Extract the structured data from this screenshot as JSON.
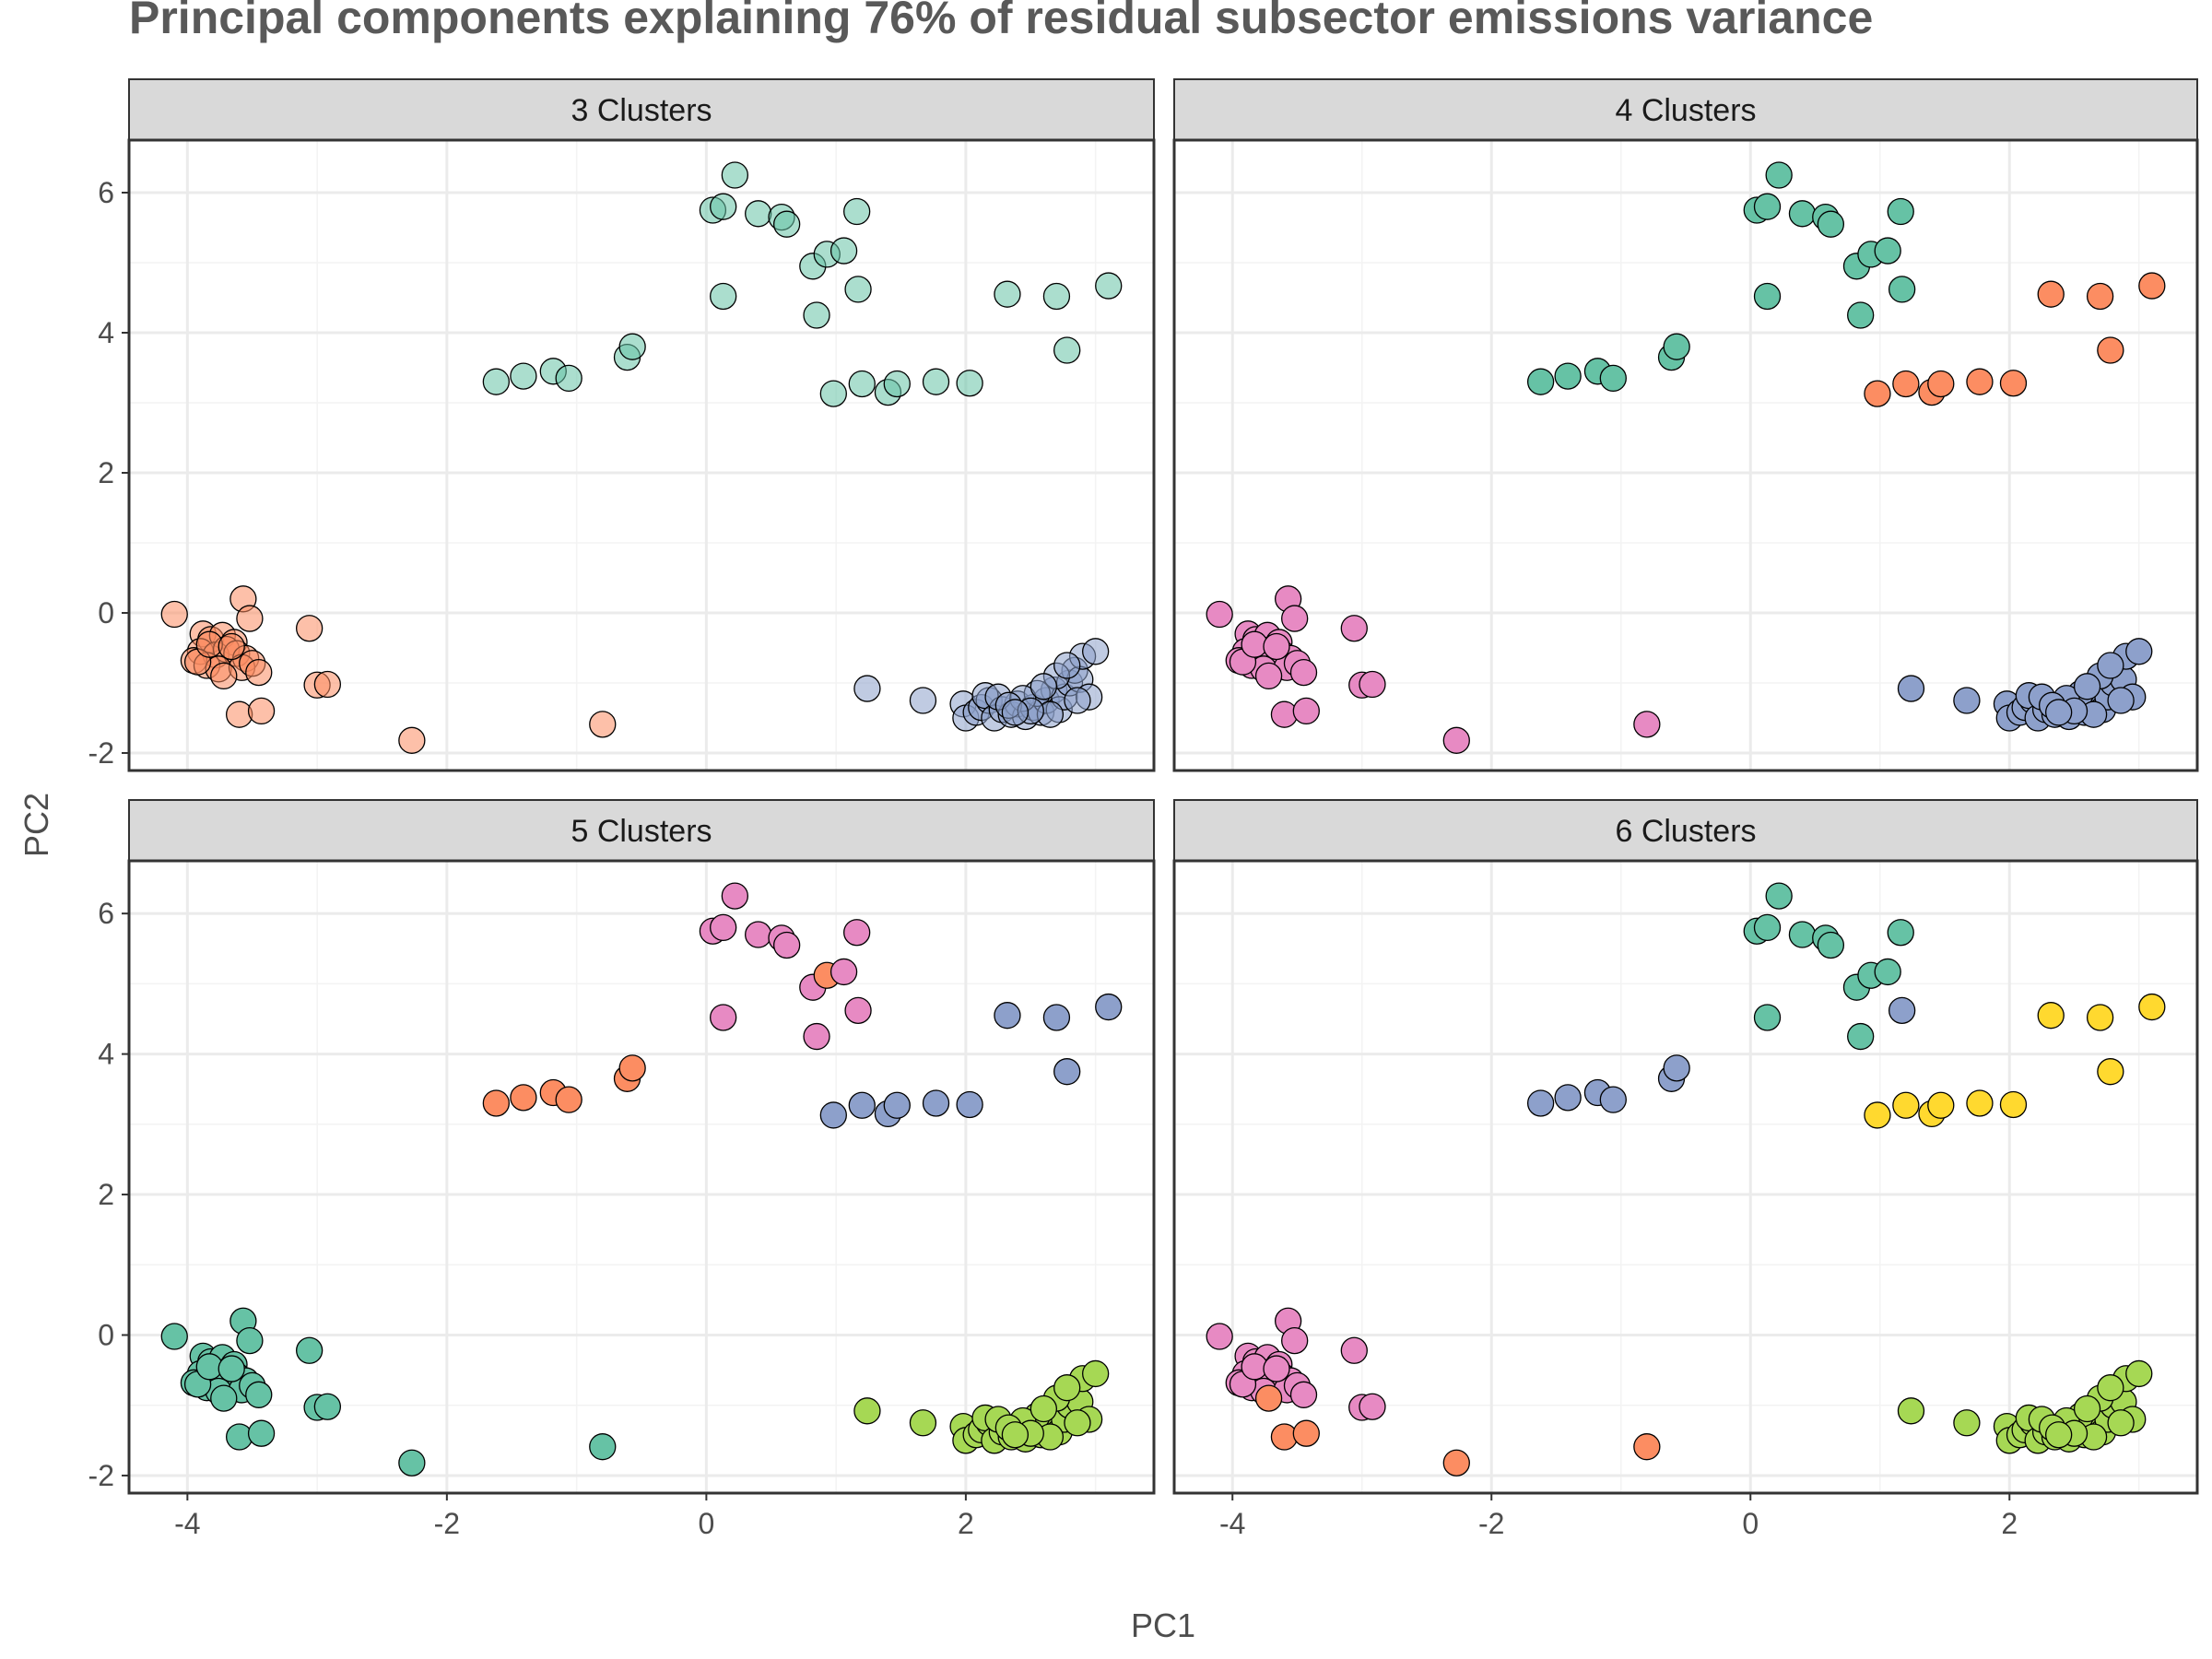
{
  "chart_data": {
    "type": "scatter",
    "title": "Principal components explaining 76% of residual subsector emissions variance",
    "xlabel": "PC1",
    "ylabel": "PC2",
    "xlim": [
      -4.45,
      3.45
    ],
    "ylim": [
      -2.25,
      6.75
    ],
    "xticks": [
      -4,
      -2,
      0,
      2
    ],
    "yticks": [
      -2,
      0,
      2,
      4,
      6
    ],
    "grid": true,
    "legend": "none",
    "point_groups": {
      "A": [
        [
          0.05,
          5.75
        ],
        [
          0.13,
          5.8
        ],
        [
          0.22,
          6.25
        ],
        [
          0.4,
          5.7
        ],
        [
          0.58,
          5.65
        ],
        [
          0.62,
          5.55
        ],
        [
          0.82,
          4.95
        ],
        [
          0.93,
          5.12
        ],
        [
          1.06,
          5.17
        ],
        [
          1.16,
          5.73
        ],
        [
          0.13,
          4.52
        ],
        [
          0.85,
          4.25
        ],
        [
          1.17,
          4.62
        ]
      ],
      "B": [
        [
          -1.62,
          3.3
        ],
        [
          -1.41,
          3.38
        ],
        [
          -1.18,
          3.45
        ],
        [
          -1.06,
          3.35
        ],
        [
          -0.61,
          3.65
        ],
        [
          -0.57,
          3.8
        ]
      ],
      "C": [
        [
          0.98,
          3.13
        ],
        [
          1.2,
          3.27
        ],
        [
          1.4,
          3.15
        ],
        [
          1.47,
          3.27
        ],
        [
          1.77,
          3.3
        ],
        [
          2.03,
          3.28
        ]
      ],
      "D": [
        [
          2.32,
          4.55
        ],
        [
          2.7,
          4.52
        ],
        [
          3.1,
          4.67
        ],
        [
          2.78,
          3.75
        ]
      ],
      "E": [
        [
          -3.88,
          -0.3
        ],
        [
          -3.82,
          -0.38
        ],
        [
          -3.73,
          -0.32
        ],
        [
          -3.64,
          -0.42
        ],
        [
          -3.9,
          -0.55
        ],
        [
          -3.78,
          -0.6
        ],
        [
          -3.7,
          -0.52
        ],
        [
          -3.62,
          -0.58
        ],
        [
          -3.55,
          -0.65
        ],
        [
          -3.95,
          -0.68
        ],
        [
          -3.85,
          -0.75
        ],
        [
          -3.76,
          -0.8
        ],
        [
          -3.58,
          -0.78
        ],
        [
          -3.5,
          -0.72
        ],
        [
          -3.45,
          -0.85
        ],
        [
          -3.72,
          -0.9
        ],
        [
          -3.92,
          -0.7
        ],
        [
          -3.83,
          -0.45
        ],
        [
          -3.66,
          -0.48
        ],
        [
          -4.1,
          -0.02
        ],
        [
          -3.57,
          0.2
        ],
        [
          -3.52,
          -0.08
        ],
        [
          -3.06,
          -0.22
        ],
        [
          -3.0,
          -1.03
        ],
        [
          -2.92,
          -1.02
        ],
        [
          -3.6,
          -1.45
        ],
        [
          -3.43,
          -1.4
        ]
      ],
      "F": [
        [
          -2.27,
          -1.82
        ],
        [
          -0.8,
          -1.59
        ]
      ],
      "G": [
        [
          1.24,
          -1.08
        ],
        [
          1.67,
          -1.25
        ],
        [
          1.98,
          -1.3
        ],
        [
          2.0,
          -1.5
        ],
        [
          2.08,
          -1.42
        ],
        [
          2.12,
          -1.35
        ],
        [
          2.18,
          -1.25
        ],
        [
          2.15,
          -1.18
        ],
        [
          2.22,
          -1.5
        ],
        [
          2.28,
          -1.38
        ],
        [
          2.35,
          -1.45
        ],
        [
          2.4,
          -1.3
        ],
        [
          2.46,
          -1.48
        ],
        [
          2.52,
          -1.35
        ],
        [
          2.58,
          -1.42
        ],
        [
          2.62,
          -1.25
        ],
        [
          2.68,
          -1.1
        ],
        [
          2.72,
          -1.38
        ],
        [
          2.76,
          -1.2
        ],
        [
          2.8,
          -1.0
        ],
        [
          2.84,
          -0.82
        ],
        [
          2.88,
          -0.95
        ],
        [
          2.9,
          -0.62
        ],
        [
          2.95,
          -1.2
        ],
        [
          3.0,
          -0.55
        ],
        [
          2.25,
          -1.2
        ],
        [
          2.55,
          -1.15
        ],
        [
          2.65,
          -1.45
        ],
        [
          2.44,
          -1.22
        ],
        [
          2.33,
          -1.32
        ],
        [
          2.7,
          -0.9
        ],
        [
          2.6,
          -1.05
        ],
        [
          2.78,
          -0.75
        ],
        [
          2.86,
          -1.25
        ],
        [
          2.5,
          -1.4
        ],
        [
          2.38,
          -1.42
        ]
      ]
    },
    "panels": [
      {
        "label": "3 Clusters",
        "colors": {
          "A": "#66C2A5",
          "B": "#66C2A5",
          "C": "#66C2A5",
          "D": "#66C2A5",
          "E": "#FC8D62",
          "F": "#FC8D62",
          "G": "#8DA0CB"
        },
        "alpha": 0.55
      },
      {
        "label": "4 Clusters",
        "colors": {
          "A": "#66C2A5",
          "B": "#66C2A5",
          "C": "#FC8D62",
          "D": "#FC8D62",
          "E": "#E78AC3",
          "F": "#E78AC3",
          "G": "#8DA0CB"
        },
        "alpha": 1.0
      },
      {
        "label": "5 Clusters",
        "colors": {
          "A": "#E78AC3",
          "B": "#FC8D62",
          "C": "#8DA0CB",
          "D": "#8DA0CB",
          "E": "#66C2A5",
          "F": "#66C2A5",
          "G": "#A6D854"
        },
        "alpha": 1.0
      },
      {
        "label": "6 Clusters",
        "colors": {
          "A": "#66C2A5",
          "B": "#8DA0CB",
          "C": "#FFD92F",
          "D": "#FFD92F",
          "E": "#E78AC3",
          "F": "#FC8D62",
          "G": "#A6D854"
        },
        "alpha": 1.0
      }
    ],
    "panel_overrides": {
      "5 Clusters": {
        "A": {
          "7": "#FC8D62"
        }
      },
      "6 Clusters": {
        "A": {
          "12": "#8DA0CB"
        },
        "E": {
          "15": "#FC8D62",
          "17": "#E78AC3",
          "25": "#FC8D62",
          "26": "#FC8D62"
        }
      }
    }
  }
}
